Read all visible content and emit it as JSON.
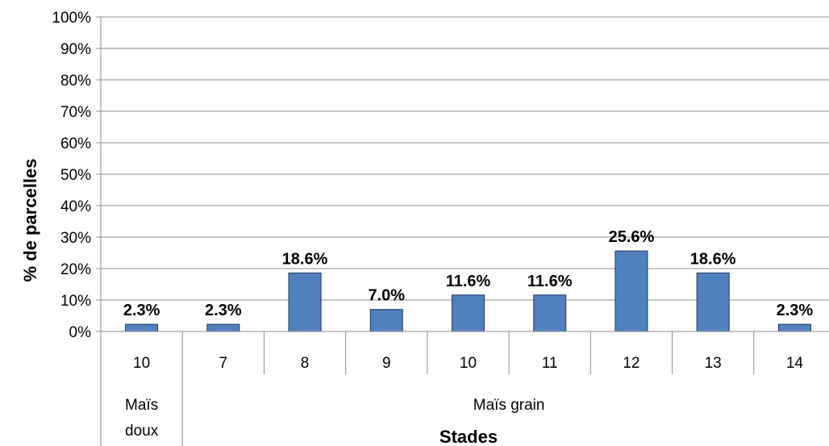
{
  "chart_data": {
    "type": "bar",
    "title": "",
    "xlabel": "Stades",
    "ylabel": "% de parcelles",
    "ylim": [
      0,
      100
    ],
    "yticks": [
      "0%",
      "10%",
      "20%",
      "30%",
      "40%",
      "50%",
      "60%",
      "70%",
      "80%",
      "90%",
      "100%"
    ],
    "grid": true,
    "groups": [
      {
        "label": "Maïs doux",
        "label_lines": [
          "Maïs",
          "doux"
        ],
        "count": 1
      },
      {
        "label": "Maïs grain",
        "label_lines": [
          "Maïs grain"
        ],
        "count": 8
      }
    ],
    "categories": [
      "10",
      "7",
      "8",
      "9",
      "10",
      "11",
      "12",
      "13",
      "14"
    ],
    "values": [
      2.3,
      2.3,
      18.6,
      7.0,
      11.6,
      11.6,
      25.6,
      18.6,
      2.3
    ],
    "data_labels": [
      "2.3%",
      "2.3%",
      "18.6%",
      "7.0%",
      "11.6%",
      "11.6%",
      "25.6%",
      "18.6%",
      "2.3%"
    ],
    "bar_color": "#4f81bd",
    "bar_edge_color": "#1f3864"
  }
}
